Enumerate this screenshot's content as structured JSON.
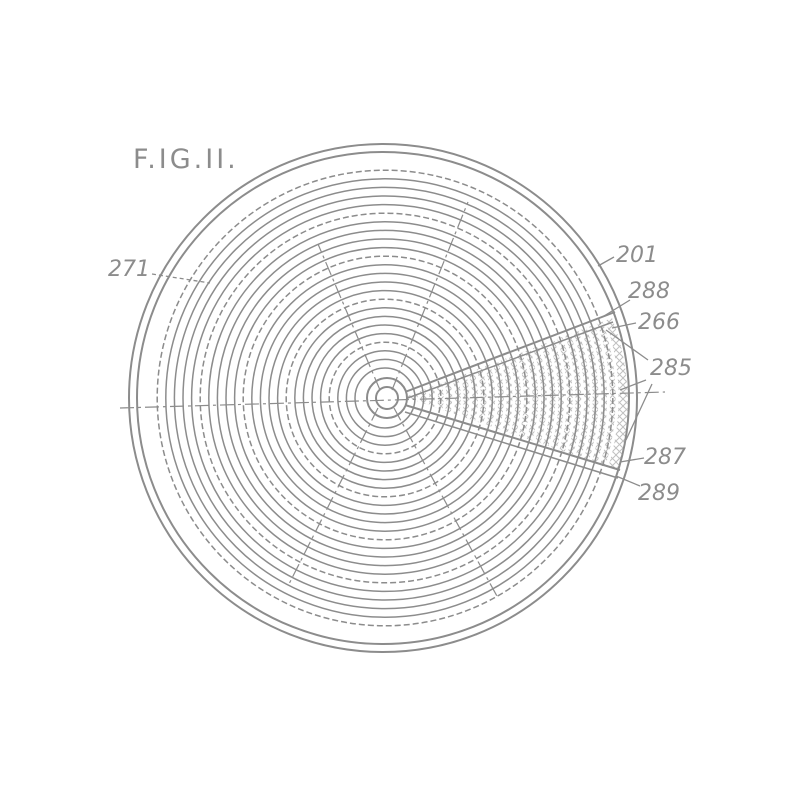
{
  "figure": {
    "title": "F.IG.II.",
    "reference_labels": {
      "r201": "201",
      "r271": "271",
      "r288": "288",
      "r266": "266",
      "r285": "285",
      "r287": "287",
      "r289": "289"
    }
  },
  "colors": {
    "line": "#8c8c8c",
    "background": "#ffffff"
  }
}
